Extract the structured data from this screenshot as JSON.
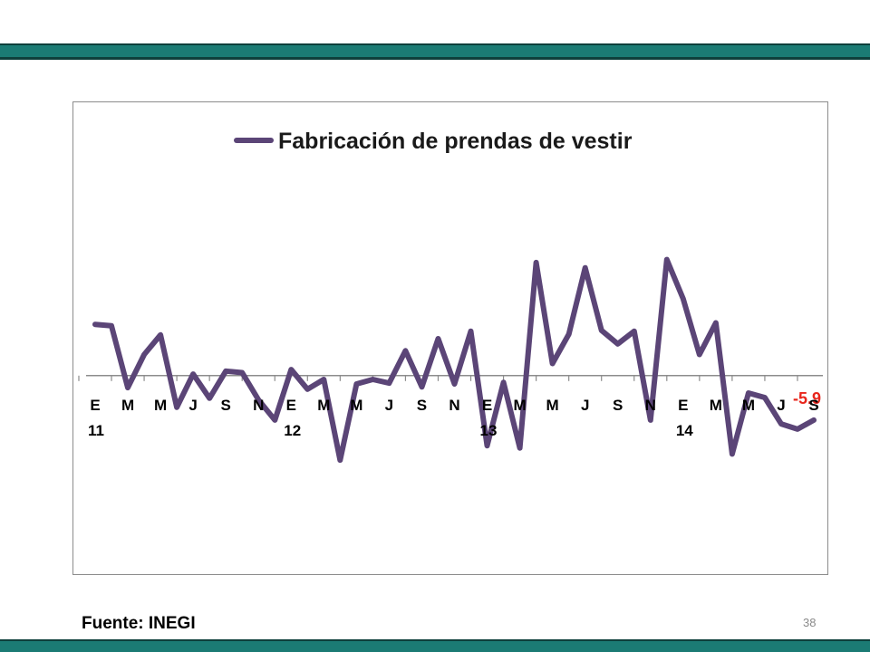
{
  "slide": {
    "source": "Fuente: INEGI",
    "page_number": "38"
  },
  "colors": {
    "band": "#1b7b74",
    "series": "#5b4577",
    "last_label": "#e8261c",
    "axis": "#8c8c8c"
  },
  "chart_data": {
    "type": "line",
    "title": "",
    "legend_position": "top",
    "grid": false,
    "ylim": [
      -22,
      30
    ],
    "xlabel": "",
    "ylabel": "",
    "x_tick_labels": [
      "E",
      "M",
      "M",
      "J",
      "S",
      "N",
      "E",
      "M",
      "M",
      "J",
      "S",
      "N",
      "E",
      "M",
      "M",
      "J",
      "S",
      "N",
      "E",
      "M",
      "M",
      "J",
      "S"
    ],
    "year_labels": [
      {
        "tick_index": 0,
        "text": "11"
      },
      {
        "tick_index": 6,
        "text": "12"
      },
      {
        "tick_index": 12,
        "text": "13"
      },
      {
        "tick_index": 18,
        "text": "14"
      }
    ],
    "last_value_label": "-5.9",
    "series": [
      {
        "name": "Fabricación de prendas de vestir",
        "values": [
          6.8,
          6.6,
          -1.6,
          2.8,
          5.4,
          -4.2,
          0.2,
          -3.0,
          0.6,
          0.4,
          -3.2,
          -5.9,
          0.8,
          -1.8,
          -0.5,
          -11.2,
          -1.1,
          -0.5,
          -1.0,
          3.3,
          -1.5,
          4.9,
          -1.1,
          5.9,
          -9.3,
          -0.9,
          -9.6,
          15.0,
          1.6,
          5.5,
          14.3,
          6.0,
          4.2,
          5.9,
          -5.9,
          15.4,
          10.2,
          2.8,
          7.0,
          -10.4,
          -2.3,
          -2.9,
          -6.4,
          -7.1,
          -5.9
        ]
      }
    ]
  }
}
